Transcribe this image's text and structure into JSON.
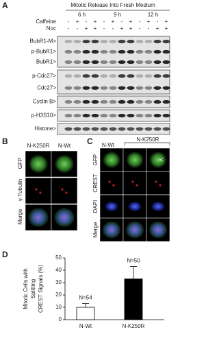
{
  "panel_a": {
    "letter": "A",
    "title": "Mitotic Release Into Fresh Medium",
    "times": [
      "6 h",
      "9 h",
      "12 h"
    ],
    "rows": [
      {
        "label": "Caffeine",
        "signs": [
          "-",
          "+",
          "-",
          "+",
          "-",
          "+",
          "-",
          "+",
          "-",
          "+",
          "-",
          "+"
        ]
      },
      {
        "label": "Noc",
        "signs": [
          "-",
          "-",
          "+",
          "+",
          "-",
          "-",
          "+",
          "+",
          "-",
          "-",
          "+",
          "+"
        ]
      }
    ],
    "blots": [
      {
        "labels": [
          "BubR1-M>",
          "p-BubR1>",
          "BubR1>"
        ]
      },
      {
        "labels": [
          "p-Cdc27>",
          "Cdc27>"
        ]
      },
      {
        "labels": [
          "Cyclin B>"
        ]
      },
      {
        "labels": [
          "p-H3S10>"
        ]
      },
      {
        "labels": [
          "Histone>"
        ]
      }
    ]
  },
  "panel_b": {
    "letter": "B",
    "columns": [
      "N-K250R",
      "N-Wt"
    ],
    "rows": [
      "GFP",
      "γ-Tubulin",
      "Merge"
    ]
  },
  "panel_c": {
    "letter": "C",
    "columns": [
      "N-Wt",
      "N-K250R"
    ],
    "rows": [
      "GFP",
      "CREST",
      "DAPI",
      "Merge"
    ]
  },
  "panel_d": {
    "letter": "D",
    "type": "bar",
    "y_label": [
      "Mitotic Cells with",
      "Splitting",
      "CREST Signals (%)"
    ],
    "categories": [
      "N-Wt",
      "N-K250R"
    ],
    "values": [
      10,
      33
    ],
    "errors": [
      3,
      10
    ],
    "annotations": [
      "N=54",
      "N=50"
    ],
    "colors": [
      "#ffffff",
      "#000000"
    ],
    "ylim": [
      0,
      50
    ],
    "yticks": [
      0,
      10,
      20,
      30,
      40,
      50
    ]
  }
}
